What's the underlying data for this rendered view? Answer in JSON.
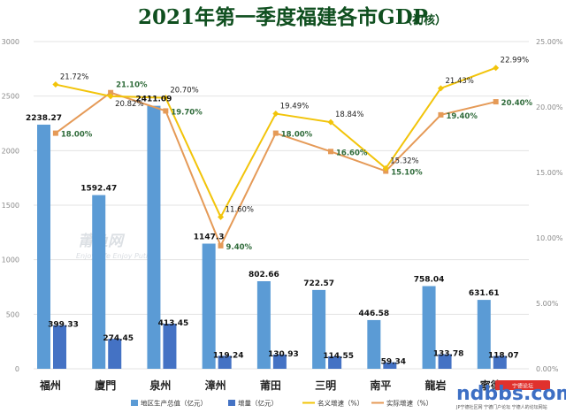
{
  "title": "2021年第一季度福建各市GDP",
  "subtitle": "（初核）",
  "watermark": "莆鱼网",
  "watermark_sub": "Enjoy Life   Enjoy Putian",
  "logo": {
    "text": "ndbbs.com",
    "tag": "宁德论坛",
    "sub": "JP宁德社区网 宁德门户论坛 宁德人的论坛网站"
  },
  "colors": {
    "gdp_bar": "#5b9bd5",
    "increase_bar": "#4472c4",
    "nominal_line": "#f2c40a",
    "real_line": "#e59a57",
    "grid": "#e3e3e3"
  },
  "chart_data": {
    "type": "bar",
    "categories": [
      "福州",
      "廈門",
      "泉州",
      "漳州",
      "莆田",
      "三明",
      "南平",
      "龍岩",
      "寧德"
    ],
    "series": [
      {
        "name": "地区生产总值（亿元）",
        "type": "bar",
        "axis": "left",
        "values": [
          2238.27,
          1592.47,
          2411.09,
          1147.3,
          802.66,
          722.57,
          446.58,
          758.04,
          631.61
        ],
        "labels": [
          "2238.27",
          "1592.47",
          "2411.09",
          "1147.3",
          "802.66",
          "722.57",
          "446.58",
          "758.04",
          "631.61"
        ]
      },
      {
        "name": "增量（亿元）",
        "type": "bar",
        "axis": "left",
        "values": [
          399.33,
          274.45,
          413.45,
          119.24,
          130.93,
          114.55,
          59.34,
          133.78,
          118.07
        ],
        "labels": [
          "399.33",
          "274.45",
          "413.45",
          "119.24",
          "130.93",
          "114.55",
          "59.34",
          "133.78",
          "118.07"
        ]
      },
      {
        "name": "名义增速（%）",
        "type": "line",
        "axis": "right",
        "values": [
          21.72,
          20.82,
          20.7,
          11.6,
          19.49,
          18.84,
          15.32,
          21.43,
          22.99
        ],
        "labels": [
          "21.72%",
          "20.82%",
          "20.70%",
          "11.60%",
          "19.49%",
          "18.84%",
          "15.32%",
          "21.43%",
          "22.99%"
        ]
      },
      {
        "name": "实际增速（%）",
        "type": "line",
        "axis": "right",
        "values": [
          18.0,
          21.1,
          19.7,
          9.4,
          18.0,
          16.6,
          15.1,
          19.4,
          20.4
        ],
        "labels": [
          "18.00%",
          "21.10%",
          "19.70%",
          "9.40%",
          "18.00%",
          "16.60%",
          "15.10%",
          "19.40%",
          "20.40%"
        ]
      }
    ],
    "y_left": {
      "min": 0,
      "max": 3000,
      "ticks": [
        "0",
        "500",
        "1000",
        "1500",
        "2000",
        "2500",
        "3000"
      ]
    },
    "y_right": {
      "min": 0,
      "max": 25,
      "ticks": [
        "0.00%",
        "5.00%",
        "10.00%",
        "15.00%",
        "20.00%",
        "25.00%"
      ]
    },
    "grid": true,
    "legend_position": "bottom"
  }
}
